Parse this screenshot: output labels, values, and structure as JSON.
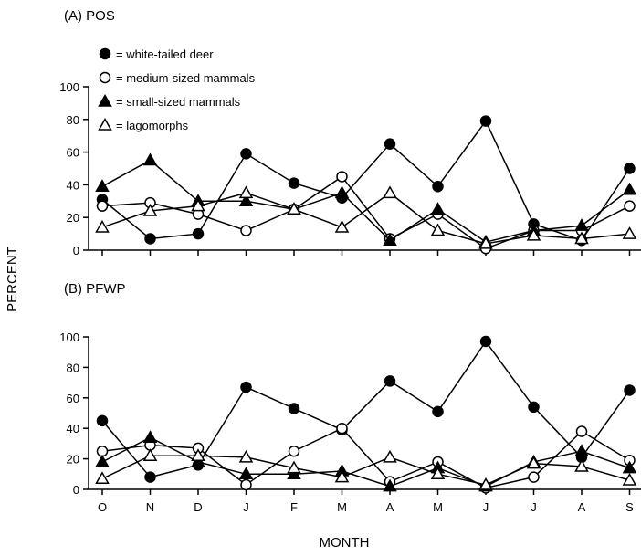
{
  "chart_data": [
    {
      "type": "line",
      "title": "(A) POS",
      "xlabel": "MONTH",
      "ylabel": "PERCENT",
      "ylim": [
        0,
        100
      ],
      "yticks": [
        "0",
        "20",
        "40",
        "60",
        "80",
        "100"
      ],
      "categories": [
        "O",
        "N",
        "D",
        "J",
        "F",
        "M",
        "A",
        "M",
        "J",
        "J",
        "A",
        "S"
      ],
      "legend_placement": "top-left",
      "series": [
        {
          "name": "white-tailed deer",
          "marker": "filled-circle",
          "values": [
            31,
            7,
            10,
            59,
            41,
            32,
            65,
            39,
            79,
            16,
            6,
            50
          ]
        },
        {
          "name": "medium-sized mammals",
          "marker": "open-circle",
          "values": [
            27,
            29,
            22,
            12,
            25,
            45,
            7,
            22,
            1,
            12,
            12,
            27
          ]
        },
        {
          "name": "small-sized mammals",
          "marker": "filled-triangle",
          "values": [
            39,
            55,
            30,
            30,
            25,
            35,
            6,
            25,
            5,
            12,
            15,
            37
          ]
        },
        {
          "name": "lagomorphs",
          "marker": "open-triangle",
          "values": [
            14,
            24,
            27,
            35,
            25,
            14,
            35,
            12,
            4,
            9,
            7,
            10
          ]
        }
      ]
    },
    {
      "type": "line",
      "title": "(B) PFWP",
      "xlabel": "MONTH",
      "ylabel": "PERCENT",
      "ylim": [
        0,
        100
      ],
      "yticks": [
        "0",
        "20",
        "40",
        "60",
        "80",
        "100"
      ],
      "categories": [
        "O",
        "N",
        "D",
        "J",
        "F",
        "M",
        "A",
        "M",
        "J",
        "J",
        "A",
        "S"
      ],
      "series": [
        {
          "name": "white-tailed deer",
          "marker": "filled-circle",
          "values": [
            45,
            8,
            16,
            67,
            53,
            39,
            71,
            51,
            97,
            54,
            21,
            65
          ]
        },
        {
          "name": "medium-sized mammals",
          "marker": "open-circle",
          "values": [
            25,
            29,
            27,
            3,
            25,
            40,
            5,
            18,
            1,
            8,
            38,
            19
          ]
        },
        {
          "name": "small-sized mammals",
          "marker": "filled-triangle",
          "values": [
            18,
            34,
            18,
            10,
            10,
            12,
            2,
            14,
            2,
            18,
            25,
            14
          ]
        },
        {
          "name": "lagomorphs",
          "marker": "open-triangle",
          "values": [
            7,
            22,
            22,
            21,
            14,
            8,
            21,
            10,
            3,
            17,
            15,
            6
          ]
        }
      ]
    }
  ],
  "legend": [
    {
      "label": "= white-tailed deer",
      "marker": "filled-circle"
    },
    {
      "label": "= medium-sized mammals",
      "marker": "open-circle"
    },
    {
      "label": "= small-sized mammals",
      "marker": "filled-triangle"
    },
    {
      "label": "= lagomorphs",
      "marker": "open-triangle"
    }
  ],
  "colors": {
    "ink": "#000000",
    "background": "#ffffff"
  }
}
